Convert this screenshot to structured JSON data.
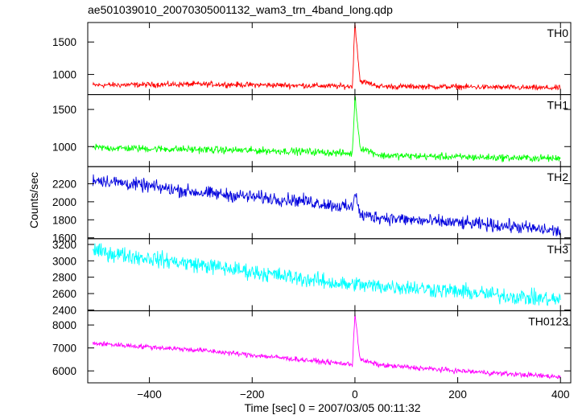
{
  "chart_data": {
    "type": "line",
    "title": "ae501039010_20070305001132_wam3_trn_4band_long.qdp",
    "xlabel": "Time [sec] 0 = 2007/03/05 00:11:32",
    "ylabel": "Counts/sec",
    "xlim": [
      -520,
      420
    ],
    "xticks": [
      -400,
      -200,
      0,
      200,
      400
    ],
    "x_sampling": {
      "start": -510,
      "end": 400,
      "step": 1
    },
    "grid": false,
    "panels": [
      {
        "name": "TH0",
        "color": "#ff0000",
        "ylim": [
          690,
          1800
        ],
        "yticks": [
          1000,
          1500
        ],
        "points": [
          [
            -510,
            835
          ],
          [
            -300,
            850
          ],
          [
            -100,
            830
          ],
          [
            -5,
            815
          ],
          [
            0,
            1800
          ],
          [
            10,
            900
          ],
          [
            50,
            815
          ],
          [
            200,
            810
          ],
          [
            400,
            790
          ]
        ],
        "noise_amplitude": 35
      },
      {
        "name": "TH1",
        "color": "#00ff00",
        "ylim": [
          730,
          1700
        ],
        "yticks": [
          1000,
          1500
        ],
        "points": [
          [
            -510,
            985
          ],
          [
            -300,
            960
          ],
          [
            -100,
            935
          ],
          [
            -5,
            905
          ],
          [
            0,
            1680
          ],
          [
            10,
            990
          ],
          [
            50,
            880
          ],
          [
            200,
            860
          ],
          [
            400,
            840
          ]
        ],
        "noise_amplitude": 40
      },
      {
        "name": "TH2",
        "color": "#0000dd",
        "ylim": [
          1590,
          2390
        ],
        "yticks": [
          1600,
          1800,
          2000,
          2200
        ],
        "points": [
          [
            -510,
            2250
          ],
          [
            -300,
            2100
          ],
          [
            -100,
            2010
          ],
          [
            -5,
            1930
          ],
          [
            0,
            2130
          ],
          [
            10,
            1850
          ],
          [
            100,
            1800
          ],
          [
            300,
            1730
          ],
          [
            400,
            1670
          ]
        ],
        "noise_amplitude": 60
      },
      {
        "name": "TH3",
        "color": "#00ffff",
        "ylim": [
          2390,
          3270
        ],
        "yticks": [
          2400,
          2600,
          2800,
          3000,
          3200
        ],
        "points": [
          [
            -510,
            3120
          ],
          [
            -300,
            2950
          ],
          [
            -100,
            2780
          ],
          [
            -5,
            2700
          ],
          [
            0,
            2740
          ],
          [
            10,
            2700
          ],
          [
            100,
            2680
          ],
          [
            300,
            2570
          ],
          [
            400,
            2520
          ]
        ],
        "noise_amplitude": 80
      },
      {
        "name": "TH0123",
        "color": "#ff00ff",
        "ylim": [
          5480,
          8620
        ],
        "yticks": [
          6000,
          7000,
          8000
        ],
        "points": [
          [
            -510,
            7200
          ],
          [
            -300,
            6900
          ],
          [
            -100,
            6480
          ],
          [
            -5,
            6280
          ],
          [
            0,
            8520
          ],
          [
            10,
            6480
          ],
          [
            50,
            6250
          ],
          [
            200,
            6000
          ],
          [
            400,
            5740
          ]
        ],
        "noise_amplitude": 90
      }
    ]
  }
}
